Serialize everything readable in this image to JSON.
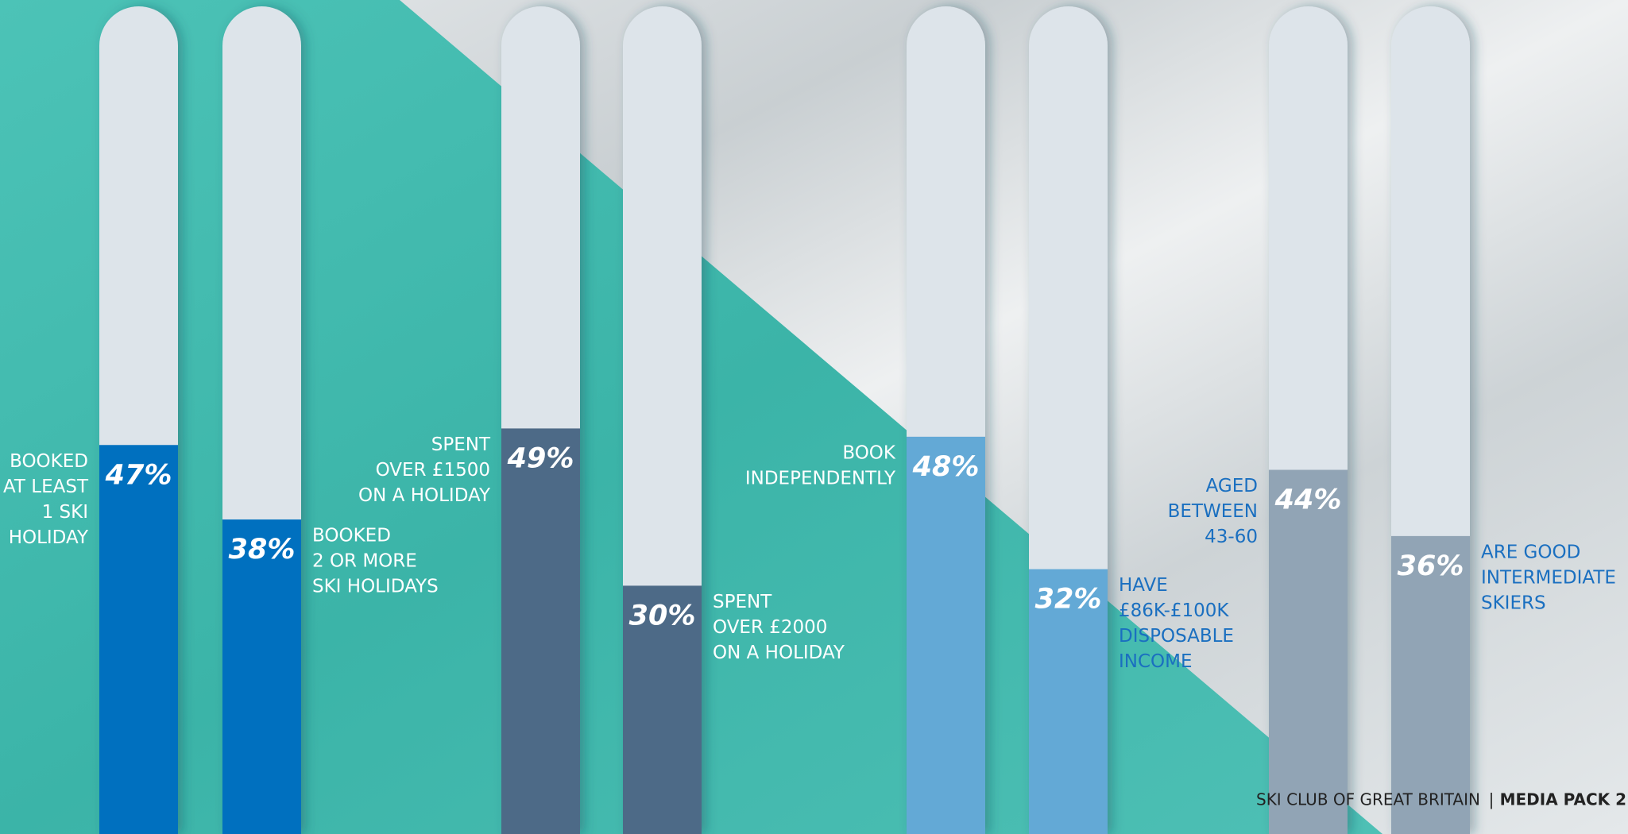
{
  "chart_data": {
    "type": "bar",
    "categories": [
      [
        "BOOKED",
        "AT LEAST",
        "1 SKI",
        "HOLIDAY"
      ],
      [
        "BOOKED",
        "2 OR MORE",
        "SKI HOLIDAYS"
      ],
      [
        "SPENT",
        "OVER £1500",
        "ON A HOLIDAY"
      ],
      [
        "SPENT",
        "OVER £2000",
        "ON A HOLIDAY"
      ],
      [
        "BOOK",
        "INDEPENDENTLY"
      ],
      [
        "HAVE",
        "£86K-£100K",
        "DISPOSABLE",
        "INCOME"
      ],
      [
        "AGED",
        "BETWEEN",
        "43-60"
      ],
      [
        "ARE GOOD",
        "INTERMEDIATE",
        "SKIERS"
      ]
    ],
    "values": [
      47,
      38,
      49,
      30,
      48,
      32,
      44,
      36
    ],
    "value_labels": [
      "47%",
      "38%",
      "49%",
      "30%",
      "48%",
      "32%",
      "44%",
      "36%"
    ],
    "colors": [
      "#0070bf",
      "#0070bf",
      "#4d6a87",
      "#4d6a87",
      "#64a9d6",
      "#64a9d6",
      "#91a4b5",
      "#91a4b5"
    ],
    "label_colors": [
      "#ffffff",
      "#ffffff",
      "#ffffff",
      "#ffffff",
      "#ffffff",
      "#1a6fc0",
      "#1a6fc0",
      "#1a6fc0"
    ],
    "label_sides": [
      "left",
      "right",
      "left",
      "right",
      "left",
      "right",
      "left",
      "right"
    ],
    "track_color": "#dde4ea",
    "ylim": [
      0,
      100
    ]
  },
  "footer": {
    "left": "SKI CLUB OF GREAT BRITAIN",
    "separator": "|",
    "right": "MEDIA PACK 2"
  }
}
